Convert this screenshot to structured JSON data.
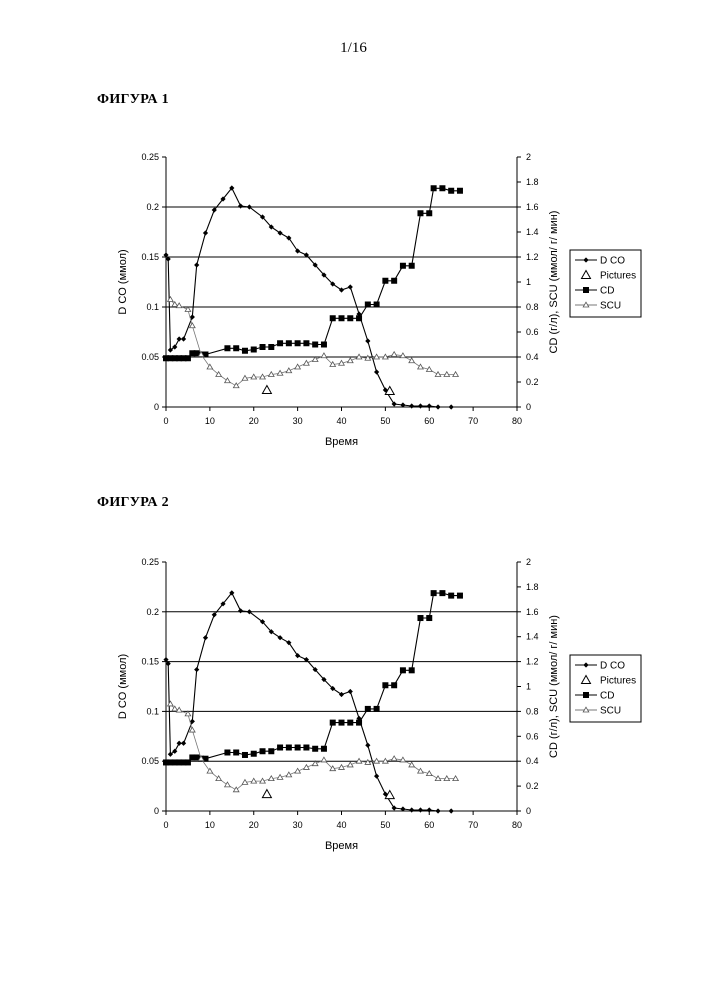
{
  "page": {
    "number": "1/16"
  },
  "figures": [
    {
      "title": "ФИГУРА 1"
    },
    {
      "title": "ФИГУРА 2"
    }
  ],
  "chart_data": [
    {
      "type": "line",
      "xlabel": "Время",
      "ylabel_left": "D CO (ммол)",
      "ylabel_right": "CD (г/л), SCU (ммол/ г/ мин)",
      "xlim": [
        0,
        80
      ],
      "ylim_left": [
        0,
        0.25
      ],
      "ylim_right": [
        0,
        2
      ],
      "x_ticks": [
        0,
        10,
        20,
        30,
        40,
        50,
        60,
        70,
        80
      ],
      "y_ticks_left": [
        0,
        0.05,
        0.1,
        0.15,
        0.2,
        0.25
      ],
      "y_ticks_right": [
        0,
        0.2,
        0.4,
        0.6,
        0.8,
        1,
        1.2,
        1.4,
        1.6,
        1.8,
        2
      ],
      "gridlines_left": [
        0.05,
        0.1,
        0.15,
        0.2
      ],
      "legend_position": "right",
      "series": [
        {
          "name": "D CO",
          "axis": "left",
          "marker": "diamond",
          "x": [
            0,
            0.5,
            1,
            2,
            3,
            4,
            6,
            7,
            9,
            11,
            13,
            15,
            17,
            19,
            22,
            24,
            26,
            28,
            30,
            32,
            34,
            36,
            38,
            40,
            42,
            44,
            46,
            48,
            50,
            52,
            54,
            56,
            58,
            60,
            62,
            65
          ],
          "y": [
            0.152,
            0.148,
            0.057,
            0.06,
            0.068,
            0.068,
            0.09,
            0.142,
            0.174,
            0.197,
            0.208,
            0.219,
            0.201,
            0.2,
            0.19,
            0.18,
            0.174,
            0.169,
            0.156,
            0.152,
            0.142,
            0.132,
            0.123,
            0.117,
            0.12,
            0.093,
            0.066,
            0.035,
            0.017,
            0.003,
            0.002,
            0.001,
            0.001,
            0.001,
            0.0,
            0.0
          ]
        },
        {
          "name": "Pictures",
          "axis": "left",
          "marker": "triangle",
          "x": [
            23,
            51
          ],
          "y": [
            0.017,
            0.016
          ]
        },
        {
          "name": "CD",
          "axis": "right",
          "marker": "square",
          "x": [
            0,
            1,
            2,
            3,
            4,
            5,
            6,
            7,
            8,
            9,
            14,
            16,
            18,
            20,
            22,
            24,
            26,
            28,
            30,
            32,
            34,
            36,
            38,
            40,
            42,
            44,
            46,
            48,
            50,
            52,
            54,
            56,
            58,
            60,
            61,
            63,
            65,
            67
          ],
          "y": [
            0.39,
            0.39,
            0.39,
            0.39,
            0.39,
            0.39,
            0.43,
            0.43,
            0.42,
            0.42,
            0.47,
            0.47,
            0.45,
            0.46,
            0.48,
            0.48,
            0.51,
            0.51,
            0.51,
            0.51,
            0.5,
            0.5,
            0.71,
            0.71,
            0.71,
            0.71,
            0.82,
            0.82,
            1.01,
            1.01,
            1.13,
            1.13,
            1.55,
            1.55,
            1.75,
            1.75,
            1.73,
            1.73
          ]
        },
        {
          "name": "SCU",
          "axis": "right",
          "marker": "open-triangle",
          "x": [
            1,
            2,
            3,
            5,
            6,
            8,
            10,
            12,
            14,
            16,
            18,
            20,
            22,
            24,
            26,
            28,
            30,
            32,
            34,
            36,
            38,
            40,
            42,
            44,
            46,
            48,
            50,
            52,
            54,
            56,
            58,
            60,
            62,
            64,
            66
          ],
          "y": [
            0.86,
            0.82,
            0.81,
            0.78,
            0.65,
            0.42,
            0.32,
            0.26,
            0.21,
            0.17,
            0.23,
            0.24,
            0.24,
            0.26,
            0.27,
            0.29,
            0.32,
            0.35,
            0.38,
            0.41,
            0.34,
            0.35,
            0.37,
            0.4,
            0.39,
            0.4,
            0.4,
            0.42,
            0.41,
            0.37,
            0.32,
            0.3,
            0.26,
            0.26,
            0.26
          ]
        }
      ]
    },
    {
      "type": "line",
      "xlabel": "Время",
      "ylabel_left": "D CO (ммол)",
      "ylabel_right": "CD (г/л), SCU (ммол/ г/ мин)",
      "xlim": [
        0,
        80
      ],
      "ylim_left": [
        0,
        0.25
      ],
      "ylim_right": [
        0,
        2
      ],
      "x_ticks": [
        0,
        10,
        20,
        30,
        40,
        50,
        60,
        70,
        80
      ],
      "y_ticks_left": [
        0,
        0.05,
        0.1,
        0.15,
        0.2,
        0.25
      ],
      "y_ticks_right": [
        0,
        0.2,
        0.4,
        0.6,
        0.8,
        1,
        1.2,
        1.4,
        1.6,
        1.8,
        2
      ],
      "gridlines_left": [
        0.05,
        0.1,
        0.15,
        0.2
      ],
      "legend_position": "right",
      "series": [
        {
          "name": "D CO",
          "axis": "left",
          "marker": "diamond",
          "x": [
            0,
            0.5,
            1,
            2,
            3,
            4,
            6,
            7,
            9,
            11,
            13,
            15,
            17,
            19,
            22,
            24,
            26,
            28,
            30,
            32,
            34,
            36,
            38,
            40,
            42,
            44,
            46,
            48,
            50,
            52,
            54,
            56,
            58,
            60,
            62,
            65
          ],
          "y": [
            0.152,
            0.148,
            0.057,
            0.06,
            0.068,
            0.068,
            0.09,
            0.142,
            0.174,
            0.197,
            0.208,
            0.219,
            0.201,
            0.2,
            0.19,
            0.18,
            0.174,
            0.169,
            0.156,
            0.152,
            0.142,
            0.132,
            0.123,
            0.117,
            0.12,
            0.093,
            0.066,
            0.035,
            0.017,
            0.003,
            0.002,
            0.001,
            0.001,
            0.001,
            0.0,
            0.0
          ]
        },
        {
          "name": "Pictures",
          "axis": "left",
          "marker": "triangle",
          "x": [
            23,
            51
          ],
          "y": [
            0.017,
            0.016
          ]
        },
        {
          "name": "CD",
          "axis": "right",
          "marker": "square",
          "x": [
            0,
            1,
            2,
            3,
            4,
            5,
            6,
            7,
            8,
            9,
            14,
            16,
            18,
            20,
            22,
            24,
            26,
            28,
            30,
            32,
            34,
            36,
            38,
            40,
            42,
            44,
            46,
            48,
            50,
            52,
            54,
            56,
            58,
            60,
            61,
            63,
            65,
            67
          ],
          "y": [
            0.39,
            0.39,
            0.39,
            0.39,
            0.39,
            0.39,
            0.43,
            0.43,
            0.42,
            0.42,
            0.47,
            0.47,
            0.45,
            0.46,
            0.48,
            0.48,
            0.51,
            0.51,
            0.51,
            0.51,
            0.5,
            0.5,
            0.71,
            0.71,
            0.71,
            0.71,
            0.82,
            0.82,
            1.01,
            1.01,
            1.13,
            1.13,
            1.55,
            1.55,
            1.75,
            1.75,
            1.73,
            1.73
          ]
        },
        {
          "name": "SCU",
          "axis": "right",
          "marker": "open-triangle",
          "x": [
            1,
            2,
            3,
            5,
            6,
            8,
            10,
            12,
            14,
            16,
            18,
            20,
            22,
            24,
            26,
            28,
            30,
            32,
            34,
            36,
            38,
            40,
            42,
            44,
            46,
            48,
            50,
            52,
            54,
            56,
            58,
            60,
            62,
            64,
            66
          ],
          "y": [
            0.86,
            0.82,
            0.81,
            0.78,
            0.65,
            0.42,
            0.32,
            0.26,
            0.21,
            0.17,
            0.23,
            0.24,
            0.24,
            0.26,
            0.27,
            0.29,
            0.32,
            0.35,
            0.38,
            0.41,
            0.34,
            0.35,
            0.37,
            0.4,
            0.39,
            0.4,
            0.4,
            0.42,
            0.41,
            0.37,
            0.32,
            0.3,
            0.26,
            0.26,
            0.26
          ]
        }
      ]
    }
  ]
}
